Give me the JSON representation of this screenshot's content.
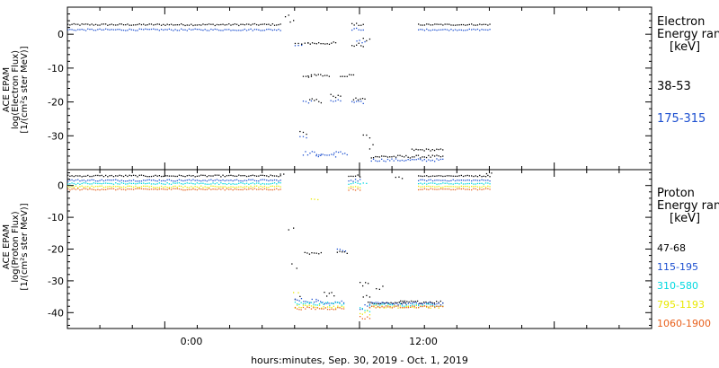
{
  "xlabel": "hours:minutes, Sep. 30, 2019 - Oct. 1, 2019",
  "x_ticks": [
    "0:00",
    "12:00"
  ],
  "chart_data": [
    {
      "type": "scatter",
      "panel": "electron",
      "ylabel_lines": [
        "ACE EPAM",
        "log(Electron Flux)",
        "[1/(cm²s ster MeV)]"
      ],
      "ylim": [
        -40,
        8
      ],
      "yticks": [
        0,
        -10,
        -20,
        -30
      ],
      "legend_title_lines": [
        "Electron",
        "Energy ranges",
        "[keV]"
      ],
      "x_units": "hours relative to 0:00 Sep. 30, 2019",
      "xlim": [
        -6,
        30
      ],
      "series": [
        {
          "name": "38-53",
          "color": "#000000",
          "segments": [
            {
              "x_from": -6,
              "x_to": 7.1,
              "y": 3.0,
              "jitter": 0.25
            },
            {
              "x_from": 7.4,
              "x_to": 7.6,
              "y": 5.5,
              "jitter": 0.4
            },
            {
              "x_from": 7.7,
              "x_to": 7.9,
              "y": 4.0,
              "jitter": 0.4
            },
            {
              "x_from": 8.0,
              "x_to": 8.4,
              "y": -2.5,
              "jitter": 0.3
            },
            {
              "x_from": 8.8,
              "x_to": 9.2,
              "y": -12.0,
              "jitter": 0.4
            },
            {
              "x_from": 8.9,
              "x_to": 9.6,
              "y": -19.5,
              "jitter": 0.6
            },
            {
              "x_from": 8.4,
              "x_to": 8.8,
              "y": -2.5,
              "jitter": 0.5
            },
            {
              "x_from": 8.5,
              "x_to": 9.0,
              "y": -12.5,
              "jitter": 0.6
            },
            {
              "x_from": 8.3,
              "x_to": 8.7,
              "y": -29.0,
              "jitter": 0.5
            },
            {
              "x_from": 8.8,
              "x_to": 10.5,
              "y": -2.5,
              "jitter": 0.4
            },
            {
              "x_from": 9.3,
              "x_to": 10.1,
              "y": -12.0,
              "jitter": 0.4
            },
            {
              "x_from": 10.2,
              "x_to": 10.8,
              "y": -18.0,
              "jitter": 0.5
            },
            {
              "x_from": 10.8,
              "x_to": 11.6,
              "y": -12.0,
              "jitter": 0.4
            },
            {
              "x_from": 11.5,
              "x_to": 12.2,
              "y": -3.0,
              "jitter": 0.6
            },
            {
              "x_from": 11.5,
              "x_to": 12.2,
              "y": 3.0,
              "jitter": 0.4
            },
            {
              "x_from": 12.2,
              "x_to": 12.6,
              "y": -1.5,
              "jitter": 0.5
            },
            {
              "x_from": 11.6,
              "x_to": 12.3,
              "y": -19.0,
              "jitter": 0.5
            },
            {
              "x_from": 12.2,
              "x_to": 12.6,
              "y": -30.0,
              "jitter": 1.0
            },
            {
              "x_from": 12.6,
              "x_to": 12.8,
              "y": -33.0,
              "jitter": 1.0
            },
            {
              "x_from": 12.7,
              "x_to": 17.1,
              "y": -36.0,
              "jitter": 0.4
            },
            {
              "x_from": 15.2,
              "x_to": 17.1,
              "y": -34.0,
              "jitter": 0.3
            },
            {
              "x_from": 15.6,
              "x_to": 20.0,
              "y": 3.0,
              "jitter": 0.2
            }
          ]
        },
        {
          "name": "175-315",
          "color": "#1c4fd0",
          "segments": [
            {
              "x_from": -6,
              "x_to": 7.1,
              "y": 1.5,
              "jitter": 0.25
            },
            {
              "x_from": 8.0,
              "x_to": 8.4,
              "y": -3.0,
              "jitter": 0.4
            },
            {
              "x_from": 8.3,
              "x_to": 8.7,
              "y": -30.0,
              "jitter": 0.5
            },
            {
              "x_from": 8.5,
              "x_to": 9.6,
              "y": -35.0,
              "jitter": 0.6
            },
            {
              "x_from": 8.5,
              "x_to": 9.0,
              "y": -20.0,
              "jitter": 0.5
            },
            {
              "x_from": 9.3,
              "x_to": 10.5,
              "y": -35.5,
              "jitter": 0.6
            },
            {
              "x_from": 10.4,
              "x_to": 11.2,
              "y": -35.0,
              "jitter": 0.6
            },
            {
              "x_from": 10.2,
              "x_to": 10.8,
              "y": -19.5,
              "jitter": 0.5
            },
            {
              "x_from": 11.5,
              "x_to": 12.2,
              "y": 1.5,
              "jitter": 0.5
            },
            {
              "x_from": 11.5,
              "x_to": 12.2,
              "y": -20.0,
              "jitter": 0.4
            },
            {
              "x_from": 11.8,
              "x_to": 12.3,
              "y": -2.0,
              "jitter": 0.8
            },
            {
              "x_from": 12.7,
              "x_to": 17.1,
              "y": -37.0,
              "jitter": 0.4
            },
            {
              "x_from": 15.6,
              "x_to": 20.0,
              "y": 1.5,
              "jitter": 0.2
            }
          ]
        }
      ]
    },
    {
      "type": "scatter",
      "panel": "proton",
      "ylabel_lines": [
        "ACE EPAM",
        "log(Proton Flux)",
        "[1/(cm²s ster MeV)]"
      ],
      "ylim": [
        -45,
        5
      ],
      "yticks": [
        0,
        -10,
        -20,
        -30,
        -40
      ],
      "legend_title_lines": [
        "Proton",
        "Energy ranges",
        "[keV]"
      ],
      "x_units": "hours relative to 0:00 Sep. 30, 2019",
      "xlim": [
        -6,
        30
      ],
      "series": [
        {
          "name": "47-68",
          "color": "#000000",
          "segments": [
            {
              "x_from": -6,
              "x_to": 7.1,
              "y": 3.2,
              "jitter": 0.25
            },
            {
              "x_from": 7.1,
              "x_to": 7.3,
              "y": 3.5,
              "jitter": 0.3
            },
            {
              "x_from": 7.6,
              "x_to": 7.9,
              "y": -13.5,
              "jitter": 0.5
            },
            {
              "x_from": 7.8,
              "x_to": 8.1,
              "y": -25.0,
              "jitter": 1.0
            },
            {
              "x_from": 8.0,
              "x_to": 8.3,
              "y": -35.0,
              "jitter": 1.5
            },
            {
              "x_from": 8.6,
              "x_to": 9.6,
              "y": -21.0,
              "jitter": 0.5
            },
            {
              "x_from": 9.8,
              "x_to": 10.4,
              "y": -34.0,
              "jitter": 0.7
            },
            {
              "x_from": 10.6,
              "x_to": 11.2,
              "y": -21.0,
              "jitter": 0.5
            },
            {
              "x_from": 11.3,
              "x_to": 12.0,
              "y": 3.2,
              "jitter": 0.4
            },
            {
              "x_from": 12.0,
              "x_to": 12.5,
              "y": -31.0,
              "jitter": 0.8
            },
            {
              "x_from": 12.2,
              "x_to": 12.6,
              "y": -35.0,
              "jitter": 1.0
            },
            {
              "x_from": 12.5,
              "x_to": 14.8,
              "y": -36.8,
              "jitter": 0.3
            },
            {
              "x_from": 13.0,
              "x_to": 13.4,
              "y": -32.0,
              "jitter": 0.5
            },
            {
              "x_from": 14.2,
              "x_to": 14.6,
              "y": 2.5,
              "jitter": 0.6
            },
            {
              "x_from": 14.5,
              "x_to": 17.1,
              "y": -36.5,
              "jitter": 0.4
            },
            {
              "x_from": 15.6,
              "x_to": 20.0,
              "y": 3.2,
              "jitter": 0.2
            },
            {
              "x_from": 19.8,
              "x_to": 20.1,
              "y": 4.0,
              "jitter": 0.3
            }
          ]
        },
        {
          "name": "115-195",
          "color": "#1c4fd0",
          "segments": [
            {
              "x_from": -6,
              "x_to": 7.1,
              "y": 1.8,
              "jitter": 0.25
            },
            {
              "x_from": 8.0,
              "x_to": 9.3,
              "y": -36.0,
              "jitter": 0.7
            },
            {
              "x_from": 9.3,
              "x_to": 11.0,
              "y": -36.5,
              "jitter": 0.6
            },
            {
              "x_from": 10.6,
              "x_to": 11.1,
              "y": -20.0,
              "jitter": 0.5
            },
            {
              "x_from": 11.3,
              "x_to": 12.0,
              "y": 1.8,
              "jitter": 0.4
            },
            {
              "x_from": 12.0,
              "x_to": 12.6,
              "y": -38.0,
              "jitter": 0.8
            },
            {
              "x_from": 12.6,
              "x_to": 17.1,
              "y": -37.0,
              "jitter": 0.4
            },
            {
              "x_from": 15.6,
              "x_to": 20.0,
              "y": 1.8,
              "jitter": 0.2
            }
          ]
        },
        {
          "name": "310-580",
          "color": "#00d8e0",
          "segments": [
            {
              "x_from": -6,
              "x_to": 7.1,
              "y": 0.8,
              "jitter": 0.25
            },
            {
              "x_from": 8.0,
              "x_to": 11.0,
              "y": -37.0,
              "jitter": 0.6
            },
            {
              "x_from": 11.3,
              "x_to": 12.0,
              "y": 0.8,
              "jitter": 0.4
            },
            {
              "x_from": 12.0,
              "x_to": 12.4,
              "y": 1.0,
              "jitter": 0.8
            },
            {
              "x_from": 12.0,
              "x_to": 12.6,
              "y": -39.0,
              "jitter": 0.8
            },
            {
              "x_from": 12.6,
              "x_to": 17.1,
              "y": -37.5,
              "jitter": 0.4
            },
            {
              "x_from": 15.6,
              "x_to": 20.0,
              "y": 0.8,
              "jitter": 0.2
            }
          ]
        },
        {
          "name": "795-1193",
          "color": "#e8e800",
          "segments": [
            {
              "x_from": -6,
              "x_to": 7.1,
              "y": -0.2,
              "jitter": 0.25
            },
            {
              "x_from": 7.9,
              "x_to": 8.2,
              "y": -33.0,
              "jitter": 0.8
            },
            {
              "x_from": 9.0,
              "x_to": 9.4,
              "y": -4.5,
              "jitter": 0.5
            },
            {
              "x_from": 8.0,
              "x_to": 11.0,
              "y": -38.0,
              "jitter": 0.5
            },
            {
              "x_from": 11.3,
              "x_to": 12.0,
              "y": -0.2,
              "jitter": 0.4
            },
            {
              "x_from": 12.0,
              "x_to": 12.6,
              "y": -40.0,
              "jitter": 0.8
            },
            {
              "x_from": 12.6,
              "x_to": 17.1,
              "y": -38.0,
              "jitter": 0.4
            },
            {
              "x_from": 15.6,
              "x_to": 20.0,
              "y": -0.2,
              "jitter": 0.2
            }
          ]
        },
        {
          "name": "1060-1900",
          "color": "#e8601c",
          "segments": [
            {
              "x_from": -6,
              "x_to": 7.1,
              "y": -1.0,
              "jitter": 0.25
            },
            {
              "x_from": 8.0,
              "x_to": 11.0,
              "y": -38.5,
              "jitter": 0.4
            },
            {
              "x_from": 11.3,
              "x_to": 12.0,
              "y": -1.0,
              "jitter": 0.4
            },
            {
              "x_from": 12.0,
              "x_to": 12.6,
              "y": -41.5,
              "jitter": 0.6
            },
            {
              "x_from": 12.6,
              "x_to": 17.1,
              "y": -38.0,
              "jitter": 0.3
            },
            {
              "x_from": 15.6,
              "x_to": 20.0,
              "y": -1.0,
              "jitter": 0.2
            }
          ]
        }
      ]
    }
  ]
}
